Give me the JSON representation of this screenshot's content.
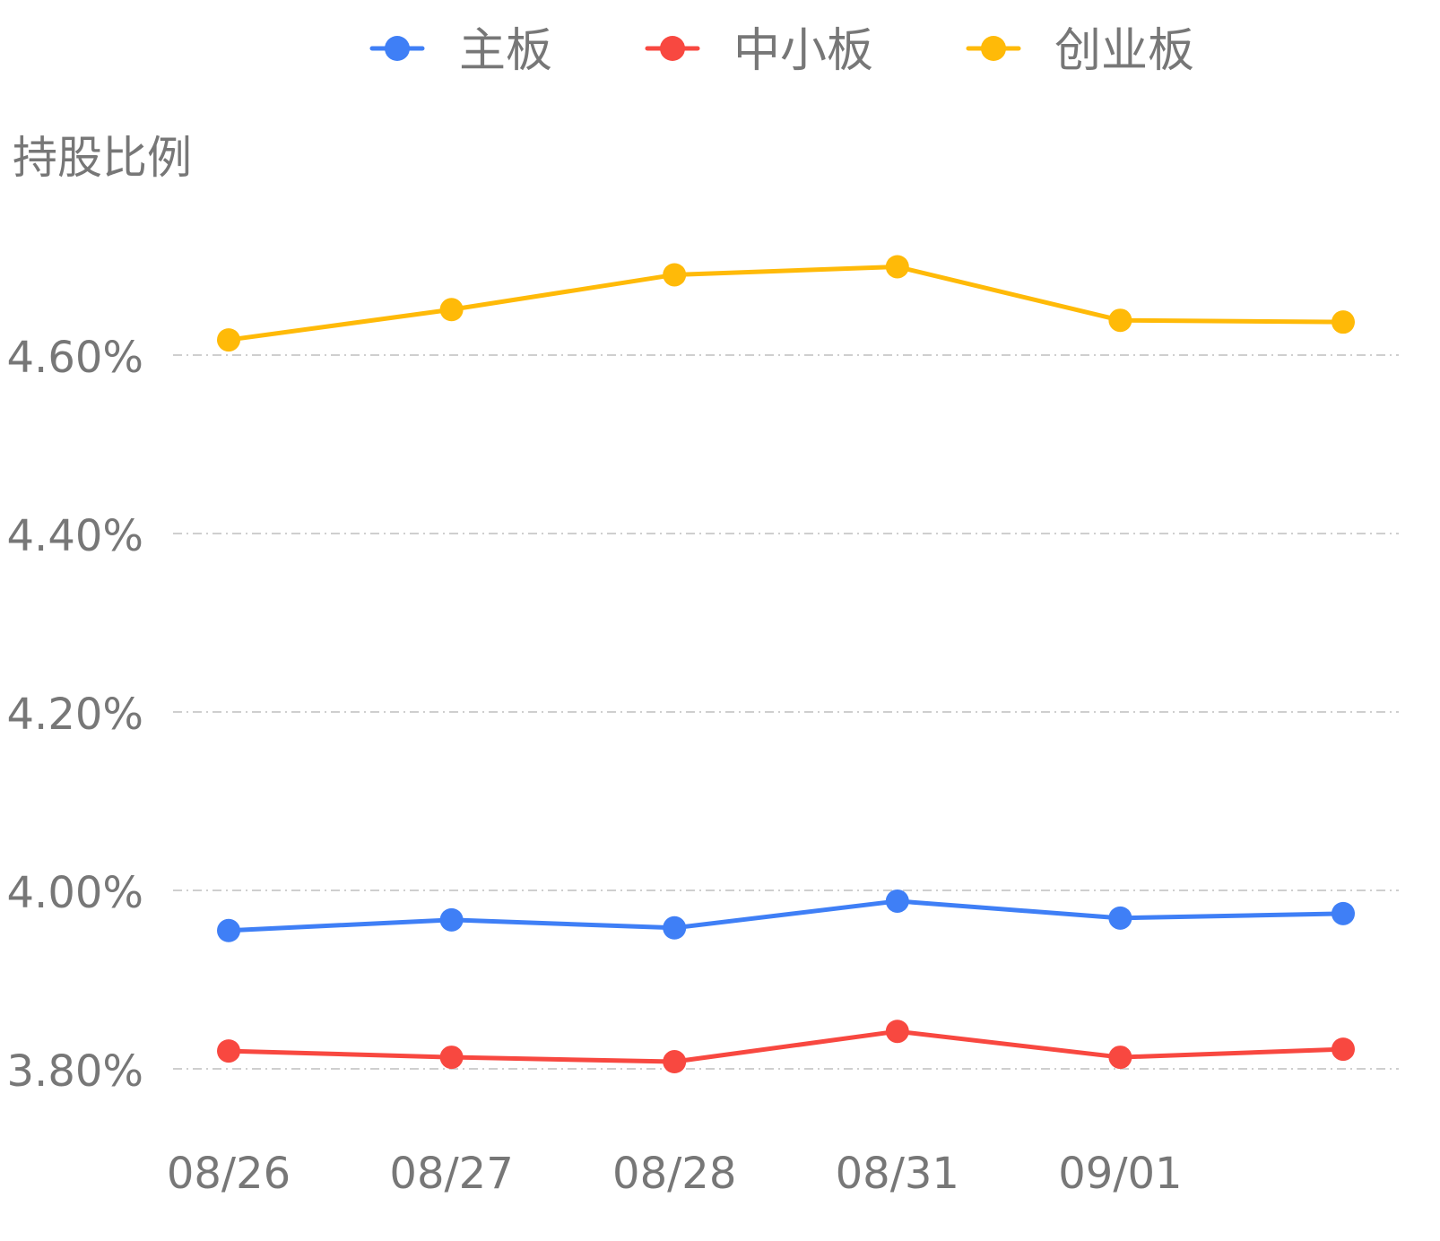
{
  "chart_data": {
    "type": "line",
    "title": "",
    "ylabel": "持股比例",
    "xlabel": "",
    "categories": [
      "08/26",
      "08/27",
      "08/28",
      "08/31",
      "09/01",
      ""
    ],
    "ylim": [
      3.8,
      4.6
    ],
    "yticks": [
      "3.80%",
      "4.00%",
      "4.20%",
      "4.40%",
      "4.60%"
    ],
    "ytick_values": [
      3.8,
      4.0,
      4.2,
      4.4,
      4.6
    ],
    "grid": true,
    "legend_position": "top-center",
    "series": [
      {
        "name": "主板",
        "color": "#3f7ff6",
        "values": [
          3.955,
          3.967,
          3.958,
          3.988,
          3.969,
          3.974
        ]
      },
      {
        "name": "中小板",
        "color": "#f84840",
        "values": [
          3.82,
          3.813,
          3.808,
          3.842,
          3.813,
          3.822
        ]
      },
      {
        "name": "创业板",
        "color": "#ffba08",
        "values": [
          4.617,
          4.651,
          4.69,
          4.699,
          4.639,
          4.637
        ]
      }
    ]
  }
}
